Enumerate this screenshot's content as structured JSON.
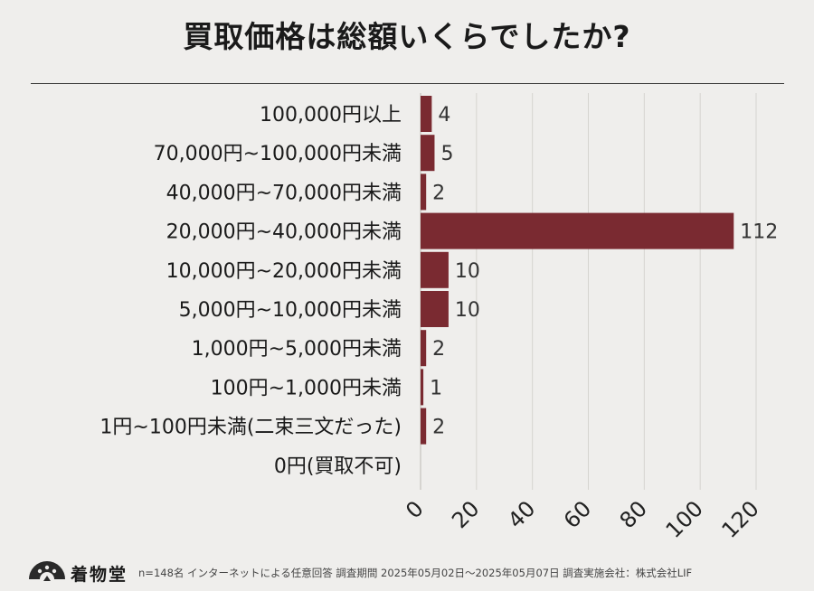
{
  "chart_data": {
    "type": "bar",
    "orientation": "horizontal",
    "title": "買取価格は総額いくらでしたか?",
    "categories": [
      "100,000円以上",
      "70,000円~100,000円未満",
      "40,000円~70,000円未満",
      "20,000円~40,000円未満",
      "10,000円~20,000円未満",
      "5,000円~10,000円未満",
      "1,000円~5,000円未満",
      "100円~1,000円未満",
      "1円~100円未満(二束三文だった)",
      "0円(買取不可)"
    ],
    "values": [
      4,
      5,
      2,
      112,
      10,
      10,
      2,
      1,
      2,
      0
    ],
    "data_labels": [
      "4",
      "5",
      "2",
      "112",
      "10",
      "10",
      "2",
      "1",
      "2",
      ""
    ],
    "xlim": [
      0,
      120
    ],
    "ticks": [
      0,
      20,
      40,
      60,
      80,
      100,
      120
    ],
    "tick_labels": [
      "0",
      "20",
      "40",
      "60",
      "80",
      "100",
      "120"
    ],
    "grid": true,
    "xlabel": "",
    "ylabel": ""
  },
  "colors": {
    "bar": "#7a2a31",
    "grid": "#d6d4d0",
    "text": "#1a1a1a",
    "background": "#efeeec"
  },
  "footer": {
    "logo_text": "着物堂",
    "logo_icon": "fan-logo-icon",
    "note": "n=148名 インターネットによる任意回答 調査期間 2025年05月02日〜2025年05月07日 調査実施会社：株式会社LIF"
  }
}
